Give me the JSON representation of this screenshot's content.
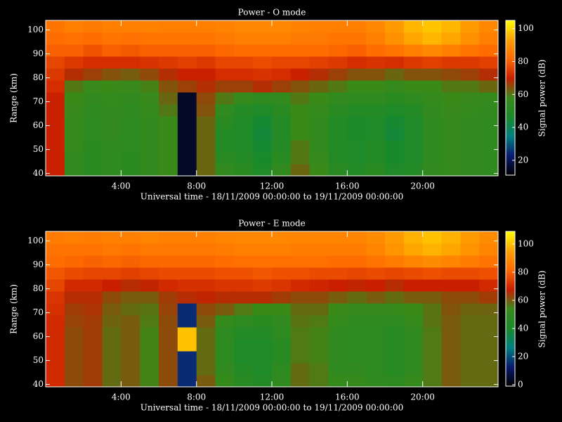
{
  "chart_data": [
    {
      "type": "heatmap",
      "title": "Power - O mode",
      "x_label": "Universal time - 18/11/2009 00:00:00 to 19/11/2009 00:00:00",
      "y_label": "Range (km)",
      "colorbar_label": "Signal power (dB)",
      "xlim": [
        0,
        24
      ],
      "xticks": [
        {
          "value": 4,
          "label": "4:00"
        },
        {
          "value": 8,
          "label": "8:00"
        },
        {
          "value": 12,
          "label": "12:00"
        },
        {
          "value": 16,
          "label": "16:00"
        },
        {
          "value": 20,
          "label": "20:00"
        }
      ],
      "ylim": [
        39,
        104
      ],
      "yticks": [
        40,
        50,
        60,
        70,
        80,
        90,
        100
      ],
      "zlim": [
        11,
        105
      ],
      "zticks": [
        20,
        40,
        60,
        80,
        100
      ],
      "colormap": [
        "#000000",
        "#0a1a70",
        "#008080",
        "#1a8a2a",
        "#3a8a1a",
        "#c81e00",
        "#ff6a00",
        "#ffa000",
        "#ffff00"
      ],
      "x": [
        0.5,
        1.5,
        2.5,
        3.5,
        4.5,
        5.5,
        6.5,
        7.5,
        8.5,
        9.5,
        10.5,
        11.5,
        12.5,
        13.5,
        14.5,
        15.5,
        16.5,
        17.5,
        18.5,
        19.5,
        20.5,
        21.5,
        22.5,
        23.5
      ],
      "y": [
        41.5,
        46.5,
        51.5,
        56.5,
        61.5,
        66.5,
        71.5,
        76.5,
        81.5,
        86.5,
        91.5,
        96.5,
        101.5
      ],
      "values": [
        [
          70,
          55,
          52,
          54,
          52,
          55,
          58,
          15,
          62,
          55,
          52,
          48,
          55,
          62,
          58,
          52,
          50,
          52,
          48,
          50,
          55,
          56,
          55,
          54
        ],
        [
          70,
          55,
          52,
          54,
          52,
          55,
          58,
          15,
          62,
          52,
          50,
          46,
          52,
          60,
          56,
          50,
          48,
          50,
          46,
          48,
          54,
          56,
          55,
          54
        ],
        [
          70,
          56,
          52,
          54,
          53,
          55,
          58,
          15,
          62,
          50,
          48,
          45,
          50,
          60,
          55,
          50,
          48,
          50,
          46,
          48,
          54,
          56,
          55,
          54
        ],
        [
          70,
          56,
          53,
          55,
          53,
          55,
          58,
          15,
          62,
          50,
          48,
          44,
          50,
          58,
          55,
          50,
          47,
          48,
          44,
          48,
          54,
          56,
          55,
          54
        ],
        [
          70,
          56,
          53,
          55,
          53,
          55,
          58,
          15,
          62,
          52,
          48,
          45,
          50,
          58,
          55,
          50,
          47,
          48,
          45,
          48,
          54,
          56,
          55,
          54
        ],
        [
          70,
          57,
          54,
          55,
          54,
          56,
          60,
          15,
          64,
          54,
          50,
          48,
          52,
          58,
          56,
          52,
          50,
          50,
          48,
          50,
          55,
          57,
          56,
          55
        ],
        [
          70,
          58,
          55,
          56,
          55,
          57,
          62,
          15,
          65,
          60,
          56,
          54,
          55,
          60,
          58,
          55,
          54,
          54,
          52,
          54,
          56,
          58,
          57,
          56
        ],
        [
          72,
          60,
          57,
          58,
          57,
          59,
          64,
          66,
          68,
          66,
          66,
          68,
          66,
          64,
          62,
          60,
          58,
          58,
          56,
          58,
          58,
          60,
          60,
          62
        ],
        [
          74,
          68,
          66,
          64,
          63,
          65,
          68,
          70,
          70,
          72,
          72,
          73,
          72,
          70,
          68,
          66,
          64,
          64,
          62,
          64,
          64,
          65,
          66,
          68
        ],
        [
          76,
          74,
          72,
          72,
          72,
          73,
          74,
          75,
          74,
          76,
          76,
          77,
          76,
          76,
          75,
          74,
          72,
          73,
          72,
          74,
          75,
          74,
          74,
          75
        ],
        [
          80,
          80,
          78,
          80,
          79,
          80,
          80,
          80,
          80,
          81,
          82,
          82,
          82,
          82,
          82,
          81,
          80,
          82,
          84,
          86,
          88,
          86,
          84,
          82
        ],
        [
          82,
          83,
          82,
          84,
          83,
          84,
          84,
          84,
          84,
          85,
          86,
          86,
          86,
          85,
          85,
          84,
          84,
          86,
          90,
          94,
          96,
          94,
          90,
          86
        ],
        [
          84,
          86,
          85,
          86,
          86,
          87,
          86,
          86,
          86,
          87,
          88,
          88,
          88,
          87,
          86,
          86,
          86,
          88,
          92,
          96,
          98,
          96,
          92,
          88
        ]
      ]
    },
    {
      "type": "heatmap",
      "title": "Power - E mode",
      "x_label": "Universal time - 18/11/2009 00:00:00 to 19/11/2009 00:00:00",
      "y_label": "Range (km)",
      "colorbar_label": "Signal power (dB)",
      "xlim": [
        0,
        24
      ],
      "xticks": [
        {
          "value": 4,
          "label": "4:00"
        },
        {
          "value": 8,
          "label": "8:00"
        },
        {
          "value": 12,
          "label": "12:00"
        },
        {
          "value": 16,
          "label": "16:00"
        },
        {
          "value": 20,
          "label": "20:00"
        }
      ],
      "ylim": [
        39,
        104
      ],
      "yticks": [
        40,
        50,
        60,
        70,
        80,
        90,
        100
      ],
      "zlim": [
        -1,
        109
      ],
      "zticks": [
        0,
        20,
        40,
        60,
        80,
        100
      ],
      "colormap": [
        "#000000",
        "#0a1a70",
        "#008080",
        "#1a8a2a",
        "#3a8a1a",
        "#c81e00",
        "#ff6a00",
        "#ffa000",
        "#ffff00"
      ],
      "x": [
        0.5,
        1.5,
        2.5,
        3.5,
        4.5,
        5.5,
        6.5,
        7.5,
        8.5,
        9.5,
        10.5,
        11.5,
        12.5,
        13.5,
        14.5,
        15.5,
        16.5,
        17.5,
        18.5,
        19.5,
        20.5,
        21.5,
        22.5,
        23.5
      ],
      "y": [
        41.5,
        46.5,
        51.5,
        56.5,
        61.5,
        66.5,
        71.5,
        76.5,
        81.5,
        86.5,
        91.5,
        96.5,
        101.5
      ],
      "values": [
        [
          70,
          62,
          64,
          58,
          60,
          55,
          62,
          15,
          60,
          52,
          46,
          44,
          50,
          58,
          56,
          52,
          52,
          50,
          48,
          52,
          56,
          60,
          58,
          58
        ],
        [
          70,
          62,
          64,
          58,
          60,
          55,
          62,
          15,
          58,
          50,
          44,
          42,
          48,
          58,
          56,
          50,
          50,
          48,
          46,
          50,
          56,
          60,
          58,
          58
        ],
        [
          70,
          62,
          64,
          58,
          60,
          55,
          62,
          15,
          58,
          48,
          42,
          42,
          46,
          56,
          55,
          50,
          48,
          48,
          46,
          50,
          56,
          60,
          58,
          58
        ],
        [
          70,
          62,
          64,
          58,
          60,
          55,
          62,
          100,
          58,
          48,
          42,
          42,
          46,
          56,
          55,
          50,
          48,
          48,
          46,
          50,
          56,
          60,
          58,
          58
        ],
        [
          70,
          62,
          64,
          58,
          60,
          55,
          62,
          100,
          58,
          48,
          44,
          44,
          48,
          56,
          55,
          50,
          48,
          48,
          46,
          50,
          56,
          60,
          58,
          58
        ],
        [
          70,
          63,
          64,
          59,
          60,
          56,
          62,
          15,
          60,
          52,
          48,
          47,
          50,
          57,
          56,
          52,
          50,
          50,
          48,
          52,
          57,
          60,
          58,
          58
        ],
        [
          71,
          64,
          65,
          60,
          58,
          57,
          63,
          15,
          62,
          60,
          56,
          54,
          54,
          58,
          58,
          54,
          52,
          52,
          52,
          54,
          57,
          61,
          59,
          59
        ],
        [
          72,
          66,
          66,
          62,
          60,
          60,
          64,
          66,
          67,
          66,
          66,
          66,
          64,
          62,
          62,
          60,
          58,
          60,
          58,
          60,
          60,
          62,
          62,
          64
        ],
        [
          75,
          70,
          70,
          68,
          66,
          67,
          70,
          71,
          71,
          72,
          72,
          73,
          72,
          70,
          69,
          68,
          67,
          68,
          66,
          68,
          68,
          68,
          68,
          70
        ],
        [
          78,
          76,
          75,
          75,
          74,
          75,
          76,
          76,
          76,
          77,
          77,
          78,
          77,
          77,
          76,
          76,
          75,
          76,
          75,
          76,
          77,
          76,
          76,
          77
        ],
        [
          82,
          81,
          80,
          81,
          80,
          81,
          81,
          81,
          81,
          82,
          83,
          83,
          83,
          83,
          83,
          82,
          82,
          84,
          86,
          88,
          90,
          88,
          86,
          84
        ],
        [
          84,
          84,
          84,
          85,
          84,
          85,
          85,
          85,
          85,
          86,
          87,
          87,
          87,
          86,
          86,
          86,
          86,
          88,
          92,
          96,
          98,
          96,
          92,
          88
        ],
        [
          86,
          87,
          86,
          87,
          87,
          88,
          87,
          87,
          87,
          88,
          89,
          89,
          89,
          88,
          88,
          88,
          88,
          90,
          94,
          98,
          100,
          98,
          94,
          90
        ]
      ]
    }
  ]
}
